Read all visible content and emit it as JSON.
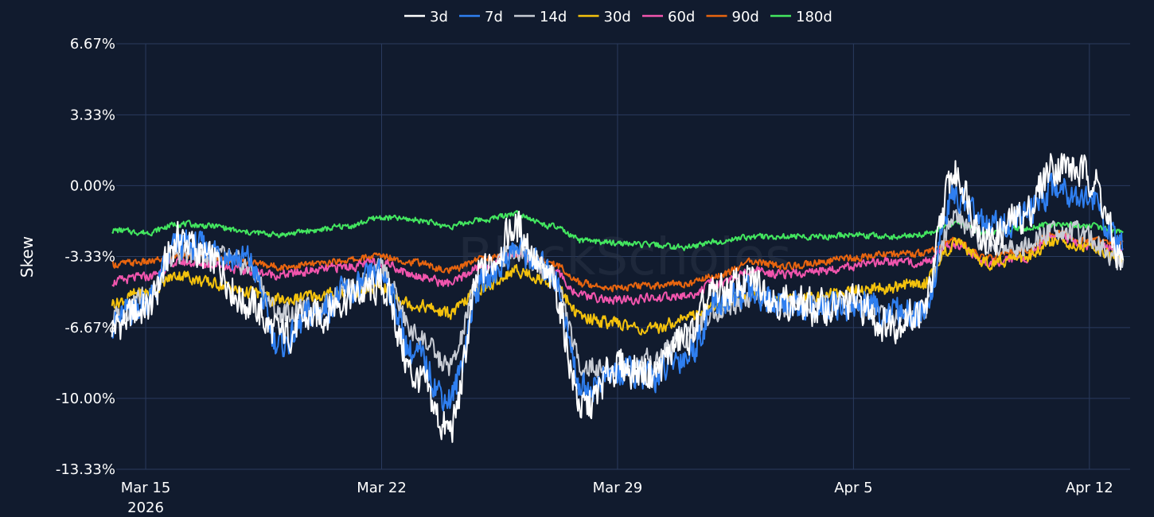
{
  "chart_data": {
    "type": "line",
    "ylabel": "Skew",
    "watermark": "BlockScholes",
    "ylim": [
      -13.33,
      6.67
    ],
    "y_ticks": [
      {
        "value": 6.67,
        "label": "6.67%"
      },
      {
        "value": 3.33,
        "label": "3.33%"
      },
      {
        "value": 0.0,
        "label": "0.00%"
      },
      {
        "value": -3.33,
        "label": "-3.33%"
      },
      {
        "value": -6.67,
        "label": "-6.67%"
      },
      {
        "value": -10.0,
        "label": "-10.00%"
      },
      {
        "value": -13.33,
        "label": "-13.33%"
      }
    ],
    "xlim": [
      "2026-03-14T03:00",
      "2026-04-13T05:00"
    ],
    "x_ticks": [
      {
        "date": "2026-03-15",
        "label": "Mar 15",
        "sublabel": "2026"
      },
      {
        "date": "2026-03-22",
        "label": "Mar 22",
        "sublabel": ""
      },
      {
        "date": "2026-03-29",
        "label": "Mar 29",
        "sublabel": ""
      },
      {
        "date": "2026-04-05",
        "label": "Apr 5",
        "sublabel": ""
      },
      {
        "date": "2026-04-12",
        "label": "Apr 12",
        "sublabel": ""
      }
    ],
    "legend_position": "top-center",
    "grid": true,
    "x": [
      "2026-03-14",
      "2026-03-15",
      "2026-03-16",
      "2026-03-17",
      "2026-03-18",
      "2026-03-19",
      "2026-03-20",
      "2026-03-21",
      "2026-03-22",
      "2026-03-23",
      "2026-03-24",
      "2026-03-25",
      "2026-03-26",
      "2026-03-27",
      "2026-03-28",
      "2026-03-29",
      "2026-03-30",
      "2026-03-31",
      "2026-04-01",
      "2026-04-02",
      "2026-04-03",
      "2026-04-04",
      "2026-04-05",
      "2026-04-06",
      "2026-04-07",
      "2026-04-08",
      "2026-04-09",
      "2026-04-10",
      "2026-04-11",
      "2026-04-12",
      "2026-04-13"
    ],
    "series": [
      {
        "name": "3d",
        "color": "#ffffff",
        "values": [
          -6.6,
          -5.8,
          -2.5,
          -3.6,
          -5.5,
          -7.0,
          -6.2,
          -5.2,
          -4.8,
          -9.0,
          -11.5,
          -4.0,
          -2.0,
          -4.5,
          -10.5,
          -8.5,
          -8.8,
          -7.2,
          -5.0,
          -4.5,
          -5.5,
          -5.8,
          -5.5,
          -6.5,
          -6.0,
          0.5,
          -2.5,
          -1.5,
          1.0,
          0.5,
          -3.5
        ]
      },
      {
        "name": "7d",
        "color": "#2f7ff0",
        "values": [
          -6.4,
          -5.5,
          -2.8,
          -3.0,
          -3.5,
          -7.5,
          -6.0,
          -5.0,
          -4.2,
          -8.0,
          -10.0,
          -4.5,
          -3.0,
          -4.0,
          -9.5,
          -8.8,
          -9.0,
          -8.0,
          -5.5,
          -5.0,
          -5.6,
          -5.8,
          -5.6,
          -6.0,
          -6.2,
          -0.5,
          -2.0,
          -1.5,
          0.0,
          -0.5,
          -3.0
        ]
      },
      {
        "name": "14d",
        "color": "#c8ccd4",
        "values": [
          -6.2,
          -5.2,
          -3.2,
          -3.3,
          -3.8,
          -6.0,
          -5.8,
          -4.8,
          -4.0,
          -7.0,
          -8.5,
          -4.2,
          -3.0,
          -4.0,
          -8.5,
          -8.6,
          -8.2,
          -7.0,
          -5.8,
          -5.2,
          -5.8,
          -5.6,
          -5.4,
          -6.0,
          -6.0,
          -1.5,
          -2.8,
          -3.0,
          -2.0,
          -2.5,
          -3.5
        ]
      },
      {
        "name": "30d",
        "color": "#f4c20d",
        "values": [
          -5.5,
          -5.0,
          -4.2,
          -4.6,
          -5.0,
          -5.4,
          -5.2,
          -5.0,
          -4.8,
          -5.6,
          -6.0,
          -4.8,
          -4.0,
          -4.5,
          -6.2,
          -6.5,
          -6.8,
          -6.2,
          -5.6,
          -5.0,
          -5.4,
          -5.2,
          -4.9,
          -4.8,
          -4.6,
          -2.8,
          -3.6,
          -3.4,
          -2.6,
          -2.8,
          -3.5
        ]
      },
      {
        "name": "60d",
        "color": "#f155ad",
        "values": [
          -4.5,
          -4.3,
          -3.6,
          -3.7,
          -4.0,
          -4.2,
          -4.0,
          -3.8,
          -3.6,
          -4.2,
          -4.6,
          -3.8,
          -3.2,
          -4.0,
          -5.2,
          -5.4,
          -5.3,
          -5.2,
          -4.6,
          -4.0,
          -4.2,
          -4.0,
          -3.8,
          -3.6,
          -3.6,
          -2.8,
          -3.6,
          -3.4,
          -2.4,
          -2.8,
          -3.0
        ]
      },
      {
        "name": "90d",
        "color": "#e8650f",
        "values": [
          -3.7,
          -3.6,
          -3.3,
          -3.4,
          -3.6,
          -3.8,
          -3.7,
          -3.5,
          -3.3,
          -3.6,
          -4.0,
          -3.4,
          -3.2,
          -3.6,
          -4.6,
          -4.8,
          -4.7,
          -4.6,
          -4.2,
          -3.6,
          -3.8,
          -3.6,
          -3.4,
          -3.2,
          -3.2,
          -2.6,
          -3.4,
          -3.0,
          -2.2,
          -2.6,
          -2.6
        ]
      },
      {
        "name": "180d",
        "color": "#43e65f",
        "values": [
          -2.1,
          -2.2,
          -1.8,
          -1.9,
          -2.2,
          -2.3,
          -2.1,
          -1.9,
          -1.5,
          -1.6,
          -1.9,
          -1.6,
          -1.3,
          -1.9,
          -2.6,
          -2.7,
          -2.8,
          -2.9,
          -2.6,
          -2.4,
          -2.4,
          -2.4,
          -2.3,
          -2.4,
          -2.3,
          -1.8,
          -2.2,
          -2.0,
          -1.8,
          -1.9,
          -2.2
        ]
      }
    ]
  }
}
